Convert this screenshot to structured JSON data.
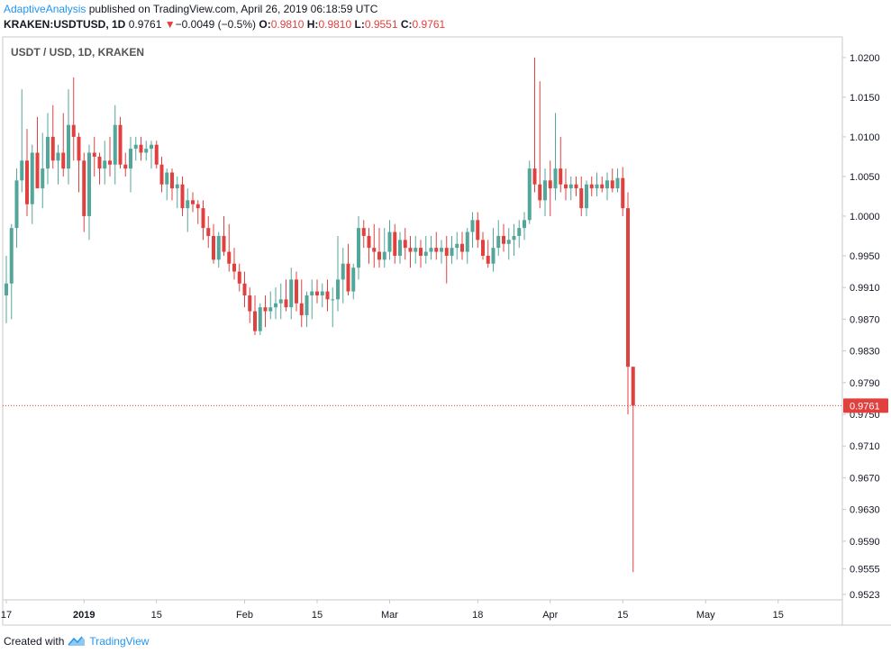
{
  "header": {
    "author": "AdaptiveAnalysis",
    "published_text": " published on TradingView.com, April 26, 2019 06:18:59 UTC",
    "symbol": "KRAKEN:USDTUSD, 1D",
    "last": "0.9761",
    "change_arrow": "▼",
    "change": "−0.0049 (−0.5%)",
    "open_label": "O:",
    "open": "0.9810",
    "high_label": "H:",
    "high": "0.9810",
    "low_label": "L:",
    "low": "0.9551",
    "close_label": "C:",
    "close": "0.9761"
  },
  "footer": {
    "created_with": "Created with",
    "brand": "TradingView",
    "logo_icon": "tradingview-logo-icon"
  },
  "colors": {
    "up": "#53a69a",
    "down": "#e0403e",
    "price_line": "#e0403e",
    "axis": "#131722",
    "grid_border": "#c8c8c8"
  },
  "chart_data": {
    "type": "candlestick",
    "title": "USDT / USD, 1D, KRAKEN",
    "ylim": [
      0.9516,
      1.0226
    ],
    "yticks": [
      "1.0200",
      "1.0150",
      "1.0100",
      "1.0050",
      "1.0000",
      "0.9950",
      "0.9910",
      "0.9870",
      "0.9830",
      "0.9790",
      "0.9750",
      "0.9710",
      "0.9670",
      "0.9630",
      "0.9590",
      "0.9555",
      "0.9523"
    ],
    "xticks": [
      {
        "label": "17",
        "bar": 0
      },
      {
        "label": "2019",
        "bar": 15
      },
      {
        "label": "15",
        "bar": 29
      },
      {
        "label": "Feb",
        "bar": 46
      },
      {
        "label": "15",
        "bar": 60
      },
      {
        "label": "Mar",
        "bar": 74
      },
      {
        "label": "18",
        "bar": 91
      },
      {
        "label": "Apr",
        "bar": 105
      },
      {
        "label": "15",
        "bar": 119
      },
      {
        "label": "May",
        "bar": 135
      },
      {
        "label": "15",
        "bar": 149
      }
    ],
    "last_price": "0.9761",
    "candles": [
      {
        "o": 0.99,
        "h": 0.995,
        "l": 0.9865,
        "c": 0.9915
      },
      {
        "o": 0.9915,
        "h": 0.999,
        "l": 0.987,
        "c": 0.9985
      },
      {
        "o": 0.9985,
        "h": 1.006,
        "l": 0.996,
        "c": 1.0045
      },
      {
        "o": 1.0045,
        "h": 1.016,
        "l": 1.003,
        "c": 1.007
      },
      {
        "o": 1.007,
        "h": 1.011,
        "l": 1.0,
        "c": 1.0015
      },
      {
        "o": 1.0015,
        "h": 1.009,
        "l": 0.999,
        "c": 1.008
      },
      {
        "o": 1.008,
        "h": 1.0125,
        "l": 1.004,
        "c": 1.0035
      },
      {
        "o": 1.0035,
        "h": 1.0105,
        "l": 1.001,
        "c": 1.006
      },
      {
        "o": 1.006,
        "h": 1.013,
        "l": 1.004,
        "c": 1.01
      },
      {
        "o": 1.01,
        "h": 1.014,
        "l": 1.006,
        "c": 1.007
      },
      {
        "o": 1.007,
        "h": 1.009,
        "l": 1.004,
        "c": 1.008
      },
      {
        "o": 1.008,
        "h": 1.013,
        "l": 1.005,
        "c": 1.006
      },
      {
        "o": 1.006,
        "h": 1.016,
        "l": 1.004,
        "c": 1.0115
      },
      {
        "o": 1.0115,
        "h": 1.0175,
        "l": 1.007,
        "c": 1.01
      },
      {
        "o": 1.01,
        "h": 1.0105,
        "l": 1.003,
        "c": 1.007
      },
      {
        "o": 1.007,
        "h": 1.008,
        "l": 0.998,
        "c": 1.0
      },
      {
        "o": 1.0,
        "h": 1.009,
        "l": 0.997,
        "c": 1.008
      },
      {
        "o": 1.008,
        "h": 1.01,
        "l": 1.005,
        "c": 1.0075
      },
      {
        "o": 1.0075,
        "h": 1.008,
        "l": 1.004,
        "c": 1.006
      },
      {
        "o": 1.006,
        "h": 1.0095,
        "l": 1.004,
        "c": 1.007
      },
      {
        "o": 1.007,
        "h": 1.01,
        "l": 1.005,
        "c": 1.0065
      },
      {
        "o": 1.0065,
        "h": 1.014,
        "l": 1.004,
        "c": 1.0115
      },
      {
        "o": 1.0115,
        "h": 1.0125,
        "l": 1.006,
        "c": 1.0065
      },
      {
        "o": 1.0065,
        "h": 1.008,
        "l": 1.005,
        "c": 1.006
      },
      {
        "o": 1.006,
        "h": 1.01,
        "l": 1.003,
        "c": 1.0085
      },
      {
        "o": 1.0085,
        "h": 1.01,
        "l": 1.007,
        "c": 1.009
      },
      {
        "o": 1.009,
        "h": 1.01,
        "l": 1.007,
        "c": 1.008
      },
      {
        "o": 1.008,
        "h": 1.0095,
        "l": 1.007,
        "c": 1.0085
      },
      {
        "o": 1.0085,
        "h": 1.0095,
        "l": 1.006,
        "c": 1.009
      },
      {
        "o": 1.009,
        "h": 1.0095,
        "l": 1.006,
        "c": 1.0065
      },
      {
        "o": 1.0065,
        "h": 1.0075,
        "l": 1.003,
        "c": 1.004
      },
      {
        "o": 1.004,
        "h": 1.006,
        "l": 1.002,
        "c": 1.0055
      },
      {
        "o": 1.0055,
        "h": 1.006,
        "l": 1.002,
        "c": 1.0035
      },
      {
        "o": 1.0035,
        "h": 1.005,
        "l": 1.001,
        "c": 1.004
      },
      {
        "o": 1.004,
        "h": 1.005,
        "l": 1.0,
        "c": 1.001
      },
      {
        "o": 1.001,
        "h": 1.0035,
        "l": 0.998,
        "c": 1.002
      },
      {
        "o": 1.002,
        "h": 1.003,
        "l": 1.0005,
        "c": 1.0015
      },
      {
        "o": 1.0015,
        "h": 1.002,
        "l": 0.999,
        "c": 1.001
      },
      {
        "o": 1.001,
        "h": 1.002,
        "l": 0.997,
        "c": 0.9985
      },
      {
        "o": 0.9985,
        "h": 1.0,
        "l": 0.996,
        "c": 0.9975
      },
      {
        "o": 0.9975,
        "h": 0.999,
        "l": 0.994,
        "c": 0.9945
      },
      {
        "o": 0.9945,
        "h": 0.998,
        "l": 0.9935,
        "c": 0.9975
      },
      {
        "o": 0.9975,
        "h": 1.0,
        "l": 0.995,
        "c": 0.9955
      },
      {
        "o": 0.9955,
        "h": 0.999,
        "l": 0.993,
        "c": 0.994
      },
      {
        "o": 0.994,
        "h": 0.996,
        "l": 0.992,
        "c": 0.993
      },
      {
        "o": 0.993,
        "h": 0.994,
        "l": 0.9905,
        "c": 0.9915
      },
      {
        "o": 0.9915,
        "h": 0.993,
        "l": 0.9885,
        "c": 0.99
      },
      {
        "o": 0.99,
        "h": 0.991,
        "l": 0.9865,
        "c": 0.988
      },
      {
        "o": 0.988,
        "h": 0.99,
        "l": 0.985,
        "c": 0.9855
      },
      {
        "o": 0.9855,
        "h": 0.989,
        "l": 0.985,
        "c": 0.9885
      },
      {
        "o": 0.9885,
        "h": 0.99,
        "l": 0.986,
        "c": 0.988
      },
      {
        "o": 0.988,
        "h": 0.9905,
        "l": 0.987,
        "c": 0.9885
      },
      {
        "o": 0.9885,
        "h": 0.991,
        "l": 0.987,
        "c": 0.989
      },
      {
        "o": 0.989,
        "h": 0.9915,
        "l": 0.987,
        "c": 0.9895
      },
      {
        "o": 0.9895,
        "h": 0.992,
        "l": 0.988,
        "c": 0.9885
      },
      {
        "o": 0.9885,
        "h": 0.9935,
        "l": 0.987,
        "c": 0.992
      },
      {
        "o": 0.992,
        "h": 0.993,
        "l": 0.988,
        "c": 0.989
      },
      {
        "o": 0.989,
        "h": 0.992,
        "l": 0.986,
        "c": 0.9875
      },
      {
        "o": 0.9875,
        "h": 0.9905,
        "l": 0.986,
        "c": 0.99
      },
      {
        "o": 0.99,
        "h": 0.992,
        "l": 0.987,
        "c": 0.9905
      },
      {
        "o": 0.9905,
        "h": 0.992,
        "l": 0.989,
        "c": 0.99
      },
      {
        "o": 0.99,
        "h": 0.9915,
        "l": 0.9885,
        "c": 0.9905
      },
      {
        "o": 0.9905,
        "h": 0.992,
        "l": 0.988,
        "c": 0.9895
      },
      {
        "o": 0.9895,
        "h": 0.991,
        "l": 0.986,
        "c": 0.9895
      },
      {
        "o": 0.9895,
        "h": 0.9975,
        "l": 0.988,
        "c": 0.992
      },
      {
        "o": 0.992,
        "h": 0.996,
        "l": 0.989,
        "c": 0.994
      },
      {
        "o": 0.994,
        "h": 0.9965,
        "l": 0.99,
        "c": 0.9905
      },
      {
        "o": 0.9905,
        "h": 0.994,
        "l": 0.9895,
        "c": 0.9935
      },
      {
        "o": 0.9935,
        "h": 1.0,
        "l": 0.992,
        "c": 0.9985
      },
      {
        "o": 0.9985,
        "h": 0.9995,
        "l": 0.996,
        "c": 0.9975
      },
      {
        "o": 0.9975,
        "h": 0.9985,
        "l": 0.994,
        "c": 0.996
      },
      {
        "o": 0.996,
        "h": 0.999,
        "l": 0.9935,
        "c": 0.9955
      },
      {
        "o": 0.9955,
        "h": 0.9985,
        "l": 0.9935,
        "c": 0.9945
      },
      {
        "o": 0.9945,
        "h": 0.9985,
        "l": 0.9935,
        "c": 0.9955
      },
      {
        "o": 0.9955,
        "h": 0.9995,
        "l": 0.9945,
        "c": 0.998
      },
      {
        "o": 0.998,
        "h": 0.999,
        "l": 0.994,
        "c": 0.995
      },
      {
        "o": 0.995,
        "h": 0.998,
        "l": 0.994,
        "c": 0.997
      },
      {
        "o": 0.997,
        "h": 0.9985,
        "l": 0.9945,
        "c": 0.996
      },
      {
        "o": 0.996,
        "h": 0.9975,
        "l": 0.9935,
        "c": 0.9955
      },
      {
        "o": 0.9955,
        "h": 0.9975,
        "l": 0.994,
        "c": 0.996
      },
      {
        "o": 0.996,
        "h": 0.997,
        "l": 0.9935,
        "c": 0.995
      },
      {
        "o": 0.995,
        "h": 0.9975,
        "l": 0.994,
        "c": 0.9955
      },
      {
        "o": 0.9955,
        "h": 0.9975,
        "l": 0.9945,
        "c": 0.996
      },
      {
        "o": 0.996,
        "h": 0.998,
        "l": 0.9945,
        "c": 0.9955
      },
      {
        "o": 0.9955,
        "h": 0.997,
        "l": 0.994,
        "c": 0.996
      },
      {
        "o": 0.996,
        "h": 0.9975,
        "l": 0.9915,
        "c": 0.995
      },
      {
        "o": 0.995,
        "h": 0.9975,
        "l": 0.994,
        "c": 0.996
      },
      {
        "o": 0.996,
        "h": 0.998,
        "l": 0.9945,
        "c": 0.9965
      },
      {
        "o": 0.9965,
        "h": 0.998,
        "l": 0.9945,
        "c": 0.9955
      },
      {
        "o": 0.9955,
        "h": 0.9985,
        "l": 0.994,
        "c": 0.998
      },
      {
        "o": 0.998,
        "h": 1.0005,
        "l": 0.996,
        "c": 0.9995
      },
      {
        "o": 0.9995,
        "h": 1.0005,
        "l": 0.996,
        "c": 0.997
      },
      {
        "o": 0.997,
        "h": 0.998,
        "l": 0.9945,
        "c": 0.995
      },
      {
        "o": 0.995,
        "h": 0.997,
        "l": 0.9935,
        "c": 0.994
      },
      {
        "o": 0.994,
        "h": 0.9985,
        "l": 0.993,
        "c": 0.996
      },
      {
        "o": 0.996,
        "h": 0.9995,
        "l": 0.995,
        "c": 0.9975
      },
      {
        "o": 0.9975,
        "h": 0.999,
        "l": 0.9955,
        "c": 0.9965
      },
      {
        "o": 0.9965,
        "h": 0.9985,
        "l": 0.9945,
        "c": 0.997
      },
      {
        "o": 0.997,
        "h": 0.999,
        "l": 0.995,
        "c": 0.9975
      },
      {
        "o": 0.9975,
        "h": 0.9995,
        "l": 0.996,
        "c": 0.9985
      },
      {
        "o": 0.9985,
        "h": 1.0005,
        "l": 0.997,
        "c": 0.9995
      },
      {
        "o": 0.9995,
        "h": 1.007,
        "l": 0.999,
        "c": 1.006
      },
      {
        "o": 1.006,
        "h": 1.02,
        "l": 1.003,
        "c": 1.004
      },
      {
        "o": 1.004,
        "h": 1.017,
        "l": 1.001,
        "c": 1.002
      },
      {
        "o": 1.002,
        "h": 1.006,
        "l": 1.0,
        "c": 1.0045
      },
      {
        "o": 1.0045,
        "h": 1.007,
        "l": 1.0,
        "c": 1.0035
      },
      {
        "o": 1.0035,
        "h": 1.013,
        "l": 1.002,
        "c": 1.006
      },
      {
        "o": 1.006,
        "h": 1.01,
        "l": 1.003,
        "c": 1.004
      },
      {
        "o": 1.004,
        "h": 1.006,
        "l": 1.002,
        "c": 1.0035
      },
      {
        "o": 1.0035,
        "h": 1.005,
        "l": 1.002,
        "c": 1.004
      },
      {
        "o": 1.004,
        "h": 1.005,
        "l": 1.0025,
        "c": 1.0035
      },
      {
        "o": 1.0035,
        "h": 1.005,
        "l": 1.0,
        "c": 1.001
      },
      {
        "o": 1.001,
        "h": 1.0045,
        "l": 1.0,
        "c": 1.004
      },
      {
        "o": 1.004,
        "h": 1.005,
        "l": 1.0025,
        "c": 1.0035
      },
      {
        "o": 1.0035,
        "h": 1.0055,
        "l": 1.0025,
        "c": 1.004
      },
      {
        "o": 1.004,
        "h": 1.005,
        "l": 1.003,
        "c": 1.0035
      },
      {
        "o": 1.0035,
        "h": 1.0055,
        "l": 1.002,
        "c": 1.0045
      },
      {
        "o": 1.0045,
        "h": 1.006,
        "l": 1.003,
        "c": 1.0035
      },
      {
        "o": 1.0035,
        "h": 1.006,
        "l": 1.003,
        "c": 1.0048
      },
      {
        "o": 1.0048,
        "h": 1.0062,
        "l": 1.0,
        "c": 1.001
      },
      {
        "o": 1.001,
        "h": 1.003,
        "l": 0.975,
        "c": 0.981
      },
      {
        "o": 0.981,
        "h": 0.981,
        "l": 0.9551,
        "c": 0.9761
      }
    ]
  }
}
